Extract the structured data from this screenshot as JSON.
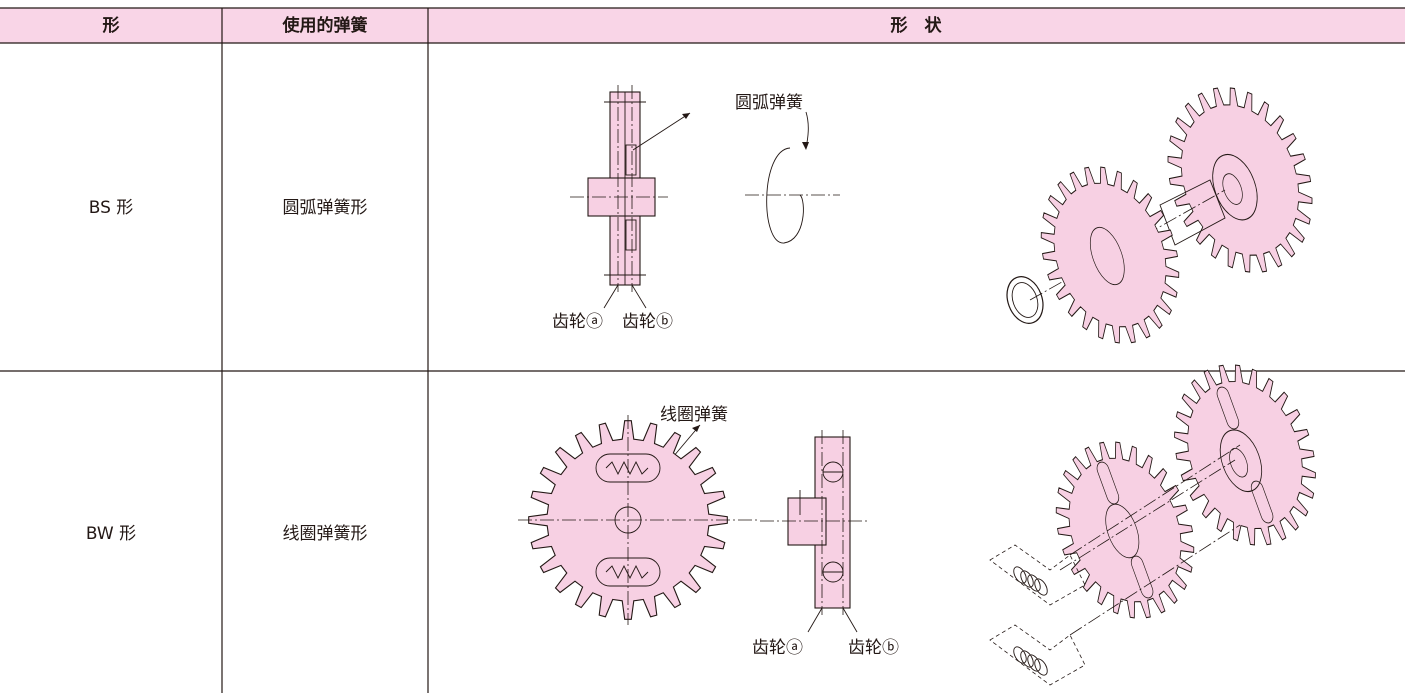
{
  "table": {
    "header": [
      "形",
      "使用的弹簧",
      "形　状"
    ],
    "rows": [
      [
        "BS 形",
        "圆弧弹簧形"
      ],
      [
        "BW 形",
        "线圈弹簧形"
      ]
    ]
  },
  "figures": [
    {
      "labels": [
        "圆弧弹簧",
        "齿轮ⓐ",
        "齿轮ⓑ"
      ]
    },
    {
      "labels": [
        "线圈弹簧",
        "齿轮ⓐ",
        "齿轮ⓑ"
      ]
    }
  ]
}
